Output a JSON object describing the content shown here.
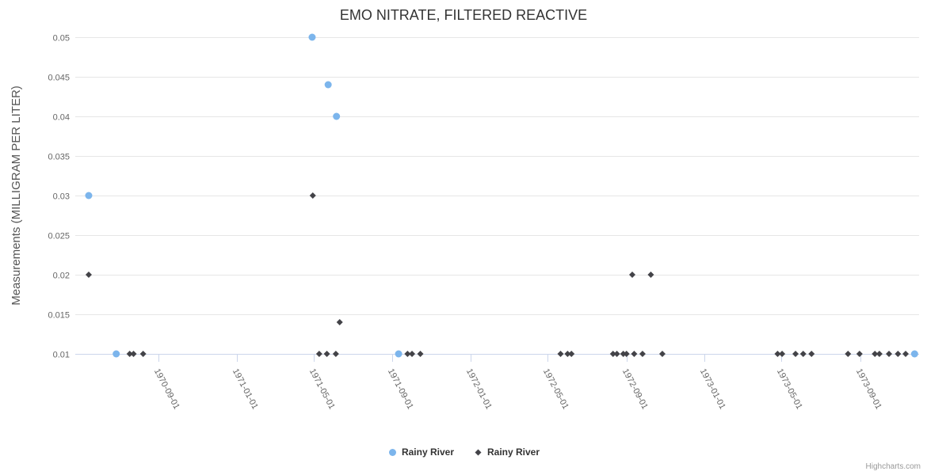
{
  "page": {
    "credits_label": "Highcharts.com"
  },
  "chart_data": {
    "type": "scatter",
    "title": "EMO NITRATE, FILTERED REACTIVE",
    "xlabel": "",
    "ylabel": "Measurements (MILLIGRAM PER LITER)",
    "x_axis_type": "datetime",
    "x_range": [
      "1970-04-24",
      "1973-12-02"
    ],
    "x_ticks": [
      "1970-09-01",
      "1971-01-01",
      "1971-05-01",
      "1971-09-01",
      "1972-01-01",
      "1972-05-01",
      "1972-09-01",
      "1973-01-01",
      "1973-05-01",
      "1973-09-01"
    ],
    "ylim": [
      0.01,
      0.05
    ],
    "y_ticks": [
      "0.01",
      "0.015",
      "0.02",
      "0.025",
      "0.03",
      "0.035",
      "0.04",
      "0.045",
      "0.05"
    ],
    "grid": "horizontal",
    "legend_position": "bottom-center",
    "colors": {
      "series1": "#7cb5ec",
      "series2": "#434348",
      "gridline": "#e6e6e6",
      "axis_line": "#ccd6eb",
      "label_text": "#666666",
      "title_text": "#333333"
    },
    "series": [
      {
        "name": "Rainy River",
        "marker": "circle",
        "color": "#7cb5ec",
        "points": [
          [
            "1970-05-15",
            0.03
          ],
          [
            "1970-06-27",
            0.01
          ],
          [
            "1971-04-29",
            0.05
          ],
          [
            "1971-05-24",
            0.044
          ],
          [
            "1971-06-06",
            0.04
          ],
          [
            "1971-09-11",
            0.01
          ],
          [
            "1973-11-25",
            0.01
          ]
        ]
      },
      {
        "name": "Rainy River",
        "marker": "diamond",
        "color": "#434348",
        "points": [
          [
            "1970-05-15",
            0.02
          ],
          [
            "1970-07-18",
            0.01
          ],
          [
            "1970-07-24",
            0.01
          ],
          [
            "1970-08-08",
            0.01
          ],
          [
            "1971-04-30",
            0.03
          ],
          [
            "1971-05-10",
            0.01
          ],
          [
            "1971-05-22",
            0.01
          ],
          [
            "1971-06-05",
            0.01
          ],
          [
            "1971-06-11",
            0.014
          ],
          [
            "1971-09-25",
            0.01
          ],
          [
            "1971-10-02",
            0.01
          ],
          [
            "1971-10-15",
            0.01
          ],
          [
            "1972-05-21",
            0.01
          ],
          [
            "1972-06-01",
            0.01
          ],
          [
            "1972-06-07",
            0.01
          ],
          [
            "1972-08-11",
            0.01
          ],
          [
            "1972-08-17",
            0.01
          ],
          [
            "1972-08-27",
            0.01
          ],
          [
            "1972-09-01",
            0.01
          ],
          [
            "1972-09-10",
            0.02
          ],
          [
            "1972-09-13",
            0.01
          ],
          [
            "1972-09-26",
            0.01
          ],
          [
            "1972-10-09",
            0.02
          ],
          [
            "1972-10-27",
            0.01
          ],
          [
            "1973-04-25",
            0.01
          ],
          [
            "1973-05-02",
            0.01
          ],
          [
            "1973-05-23",
            0.01
          ],
          [
            "1973-06-04",
            0.01
          ],
          [
            "1973-06-17",
            0.01
          ],
          [
            "1973-08-13",
            0.01
          ],
          [
            "1973-08-31",
            0.01
          ],
          [
            "1973-09-24",
            0.01
          ],
          [
            "1973-10-01",
            0.01
          ],
          [
            "1973-10-16",
            0.01
          ],
          [
            "1973-10-30",
            0.01
          ],
          [
            "1973-11-11",
            0.01
          ]
        ]
      }
    ]
  }
}
